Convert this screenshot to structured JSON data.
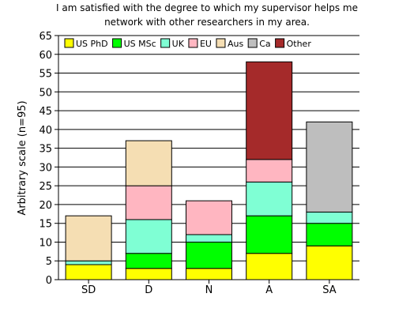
{
  "chart_data": {
    "type": "bar",
    "stacked": true,
    "title_lines": [
      "I am satisfied with the degree to which my supervisor helps me",
      "network with other researchers in my area."
    ],
    "xlabel": "",
    "ylabel": "Arbitrary scale (n=95)",
    "ylim": [
      0,
      65
    ],
    "yticks": [
      0,
      5,
      10,
      15,
      20,
      25,
      30,
      35,
      40,
      45,
      50,
      55,
      60,
      65
    ],
    "grid": true,
    "legend_position": "top",
    "categories": [
      "SD",
      "D",
      "N",
      "A",
      "SA"
    ],
    "series": [
      {
        "name": "US PhD",
        "color": "#ffff00",
        "values": [
          4,
          3,
          3,
          7,
          9
        ]
      },
      {
        "name": "US MSc",
        "color": "#00ff00",
        "values": [
          0,
          4,
          7,
          10,
          6
        ]
      },
      {
        "name": "UK",
        "color": "#7fffd4",
        "values": [
          1,
          9,
          2,
          9,
          3
        ]
      },
      {
        "name": "EU",
        "color": "#ffb6c1",
        "values": [
          0,
          9,
          9,
          6,
          0
        ]
      },
      {
        "name": "Aus",
        "color": "#f5deb3",
        "values": [
          12,
          12,
          0,
          0,
          0
        ]
      },
      {
        "name": "Ca",
        "color": "#bebebe",
        "values": [
          0,
          0,
          0,
          0,
          24
        ]
      },
      {
        "name": "Other",
        "color": "#a52a2a",
        "values": [
          0,
          0,
          0,
          26,
          0
        ]
      }
    ]
  }
}
